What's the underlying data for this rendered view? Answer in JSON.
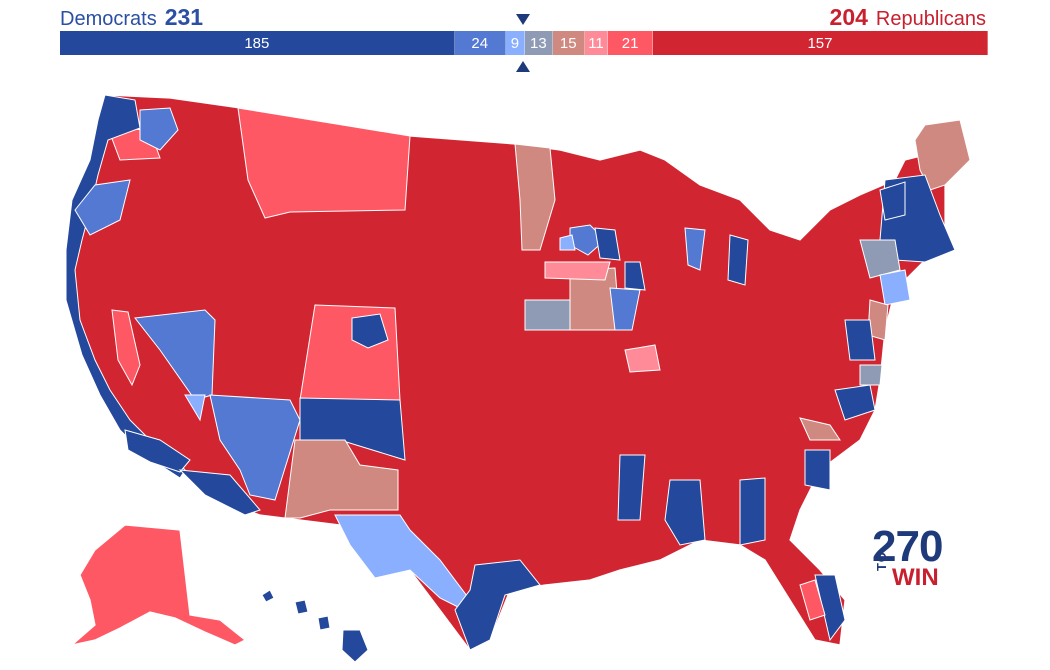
{
  "header": {
    "dem_label": "Democrats",
    "dem_total": "231",
    "rep_total": "204",
    "rep_label": "Republicans"
  },
  "seat_bar": [
    {
      "id": "safe-dem",
      "value": 185,
      "label": "185",
      "color": "#24489b"
    },
    {
      "id": "likely-dem",
      "value": 24,
      "label": "24",
      "color": "#5479d3"
    },
    {
      "id": "lean-dem",
      "value": 9,
      "label": "9",
      "color": "#8aafff"
    },
    {
      "id": "tossup",
      "value": 13,
      "label": "13",
      "color": "#8f9bb5"
    },
    {
      "id": "tilt-rep",
      "value": 15,
      "label": "15",
      "color": "#cf8980"
    },
    {
      "id": "lean-rep",
      "value": 11,
      "label": "11",
      "color": "#ff8b98"
    },
    {
      "id": "likely-rep",
      "value": 21,
      "label": "21",
      "color": "#ff5865"
    },
    {
      "id": "safe-rep",
      "value": 157,
      "label": "157",
      "color": "#d22532"
    }
  ],
  "colors": {
    "safe_dem": "#24489b",
    "likely_dem": "#5479d3",
    "lean_dem": "#8aafff",
    "tossup": "#8f9bb5",
    "tilt_rep": "#cf8980",
    "lean_rep": "#ff8b98",
    "likely_rep": "#ff5865",
    "safe_rep": "#d22532"
  },
  "logo": {
    "number": "270",
    "to": "TO",
    "win": "WIN"
  }
}
